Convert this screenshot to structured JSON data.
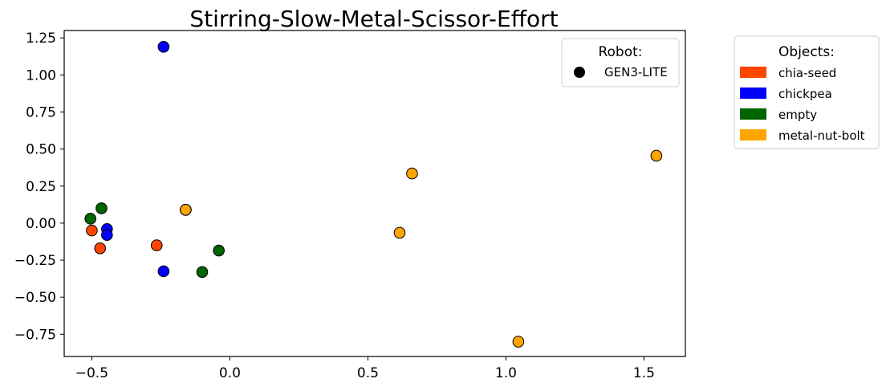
{
  "chart_data": {
    "type": "scatter",
    "title": "Stirring-Slow-Metal-Scissor-Effort",
    "xlabel": "",
    "ylabel": "",
    "xlim": [
      -0.6,
      1.65
    ],
    "ylim": [
      -0.9,
      1.3
    ],
    "x_ticks": [
      -0.5,
      0.0,
      0.5,
      1.0,
      1.5
    ],
    "x_tick_labels": [
      "−0.5",
      "0.0",
      "0.5",
      "1.0",
      "1.5"
    ],
    "y_ticks": [
      -0.75,
      -0.5,
      -0.25,
      0.0,
      0.25,
      0.5,
      0.75,
      1.0,
      1.25
    ],
    "y_tick_labels": [
      "−0.75",
      "−0.50",
      "−0.25",
      "0.00",
      "0.25",
      "0.50",
      "0.75",
      "1.00",
      "1.25"
    ],
    "grid": false,
    "robot_legend": {
      "title": "Robot:",
      "placement": "top-right inside plot",
      "entries": [
        {
          "label": "GEN3-LITE",
          "color": "#000000"
        }
      ]
    },
    "object_legend": {
      "title": "Objects:",
      "placement": "right outside plot",
      "entries": [
        {
          "label": "chia-seed",
          "color": "#FF4500"
        },
        {
          "label": "chickpea",
          "color": "#0000FF"
        },
        {
          "label": "empty",
          "color": "#006400"
        },
        {
          "label": "metal-nut-bolt",
          "color": "#FFA500"
        }
      ]
    },
    "series": [
      {
        "name": "chia-seed",
        "color": "#FF4500",
        "points": [
          [
            -0.5,
            -0.05
          ],
          [
            -0.47,
            -0.17
          ],
          [
            -0.265,
            -0.15
          ],
          [
            -0.16,
            0.09
          ]
        ]
      },
      {
        "name": "chickpea",
        "color": "#0000FF",
        "points": [
          [
            -0.24,
            1.19
          ],
          [
            -0.445,
            -0.04
          ],
          [
            -0.445,
            -0.08
          ],
          [
            -0.24,
            -0.325
          ],
          [
            -0.16,
            0.09
          ]
        ]
      },
      {
        "name": "empty",
        "color": "#006400",
        "points": [
          [
            -0.465,
            0.1
          ],
          [
            -0.505,
            0.03
          ],
          [
            -0.04,
            -0.185
          ],
          [
            -0.1,
            -0.33
          ],
          [
            -0.16,
            0.09
          ]
        ]
      },
      {
        "name": "metal-nut-bolt",
        "color": "#FFA500",
        "points": [
          [
            1.545,
            0.455
          ],
          [
            0.66,
            0.335
          ],
          [
            0.615,
            -0.065
          ],
          [
            1.045,
            -0.8
          ],
          [
            -0.16,
            0.09
          ]
        ]
      }
    ]
  }
}
